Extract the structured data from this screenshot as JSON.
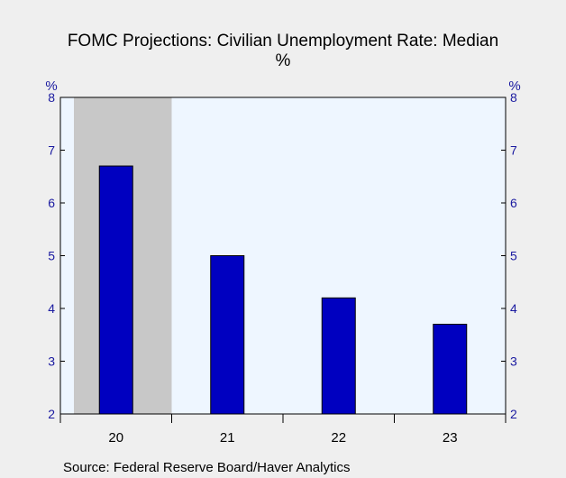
{
  "chart_data": {
    "type": "bar",
    "title": "FOMC Projections: Civilian Unemployment Rate: Median",
    "subtitle": "%",
    "y_unit_left": "%",
    "y_unit_right": "%",
    "categories": [
      "20",
      "21",
      "22",
      "23"
    ],
    "values": [
      6.7,
      5.0,
      4.2,
      3.7
    ],
    "ylim": [
      2,
      8
    ],
    "yticks": [
      2,
      3,
      4,
      5,
      6,
      7,
      8
    ],
    "grid": false,
    "shaded_category": "20",
    "source": "Source:  Federal Reserve Board/Haver Analytics",
    "colors": {
      "bar": "#0000c0",
      "plot_bg": "#eef6ff",
      "shade": "#c8c8c8",
      "tick_labels": "#1a1aa0"
    }
  }
}
